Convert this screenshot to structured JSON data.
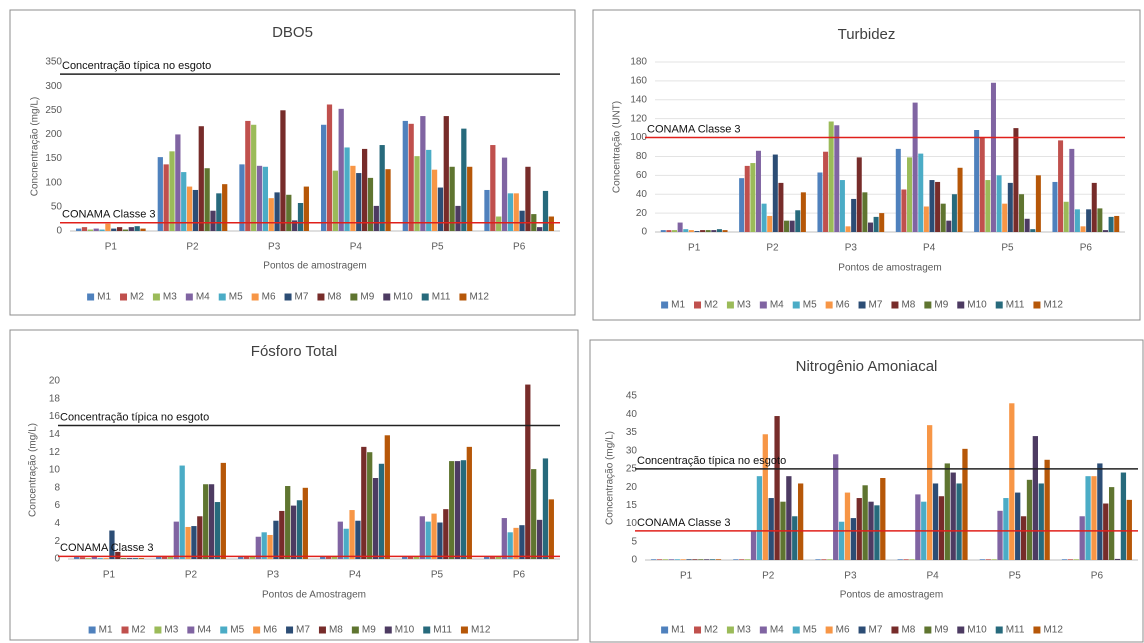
{
  "chart_data": [
    {
      "type": "bar",
      "title": "DBO5",
      "x_label": "Pontos de amostragem",
      "y_label": "Concnentração (mg/L)",
      "categories": [
        "P1",
        "P2",
        "P3",
        "P4",
        "P5",
        "P6"
      ],
      "ylim": [
        0,
        350
      ],
      "yticks": [
        0,
        50,
        100,
        150,
        200,
        250,
        300,
        350
      ],
      "grid": false,
      "reference_lines": [
        {
          "label": "Concentração típica no esgoto",
          "value": 325,
          "color": "#222222"
        },
        {
          "label": "CONAMA Classe 3",
          "value": 17,
          "color": "#e0201b"
        }
      ],
      "series": [
        {
          "name": "M1",
          "color": "#4f81bd",
          "values": [
            5,
            153,
            138,
            220,
            228,
            85
          ]
        },
        {
          "name": "M2",
          "color": "#c0504d",
          "values": [
            8,
            138,
            228,
            262,
            222,
            178
          ]
        },
        {
          "name": "M3",
          "color": "#9bbb59",
          "values": [
            3,
            165,
            220,
            125,
            155,
            30
          ]
        },
        {
          "name": "M4",
          "color": "#8064a2",
          "values": [
            5,
            200,
            135,
            253,
            238,
            152
          ]
        },
        {
          "name": "M5",
          "color": "#4bacc6",
          "values": [
            3,
            122,
            133,
            173,
            168,
            78
          ]
        },
        {
          "name": "M6",
          "color": "#f79646",
          "values": [
            15,
            92,
            68,
            135,
            127,
            78
          ]
        },
        {
          "name": "M7",
          "color": "#2c4d75",
          "values": [
            5,
            85,
            80,
            120,
            90,
            42
          ]
        },
        {
          "name": "M8",
          "color": "#772c2a",
          "values": [
            8,
            217,
            250,
            170,
            238,
            133
          ]
        },
        {
          "name": "M9",
          "color": "#5f7530",
          "values": [
            3,
            130,
            75,
            110,
            133,
            35
          ]
        },
        {
          "name": "M10",
          "color": "#4d3b62",
          "values": [
            8,
            42,
            22,
            52,
            52,
            8
          ]
        },
        {
          "name": "M11",
          "color": "#276a7c",
          "values": [
            10,
            78,
            58,
            178,
            212,
            83
          ]
        },
        {
          "name": "M12",
          "color": "#b65708",
          "values": [
            5,
            97,
            92,
            128,
            133,
            30
          ]
        }
      ]
    },
    {
      "type": "bar",
      "title": "Turbidez",
      "x_label": "Pontos de amostragem",
      "y_label": "Concentração (UNT)",
      "categories": [
        "P1",
        "P2",
        "P3",
        "P4",
        "P5",
        "P6"
      ],
      "ylim": [
        0,
        180
      ],
      "yticks": [
        0,
        20,
        40,
        60,
        80,
        100,
        120,
        140,
        160,
        180
      ],
      "grid": true,
      "reference_lines": [
        {
          "label": "CONAMA Classe 3",
          "value": 100,
          "color": "#e0201b"
        }
      ],
      "series": [
        {
          "name": "M1",
          "color": "#4f81bd",
          "values": [
            2,
            57,
            63,
            88,
            108,
            53
          ]
        },
        {
          "name": "M2",
          "color": "#c0504d",
          "values": [
            2,
            70,
            85,
            45,
            100,
            97
          ]
        },
        {
          "name": "M3",
          "color": "#9bbb59",
          "values": [
            2,
            73,
            117,
            79,
            55,
            32
          ]
        },
        {
          "name": "M4",
          "color": "#8064a2",
          "values": [
            10,
            86,
            113,
            137,
            158,
            88
          ]
        },
        {
          "name": "M5",
          "color": "#4bacc6",
          "values": [
            3,
            30,
            55,
            83,
            60,
            24
          ]
        },
        {
          "name": "M6",
          "color": "#f79646",
          "values": [
            2,
            17,
            6,
            27,
            30,
            6
          ]
        },
        {
          "name": "M7",
          "color": "#2c4d75",
          "values": [
            1,
            82,
            35,
            55,
            52,
            24
          ]
        },
        {
          "name": "M8",
          "color": "#772c2a",
          "values": [
            2,
            52,
            79,
            53,
            110,
            52
          ]
        },
        {
          "name": "M9",
          "color": "#5f7530",
          "values": [
            2,
            12,
            42,
            30,
            40,
            25
          ]
        },
        {
          "name": "M10",
          "color": "#4d3b62",
          "values": [
            2,
            12,
            10,
            12,
            14,
            2
          ]
        },
        {
          "name": "M11",
          "color": "#276a7c",
          "values": [
            3,
            23,
            16,
            40,
            3,
            16
          ]
        },
        {
          "name": "M12",
          "color": "#b65708",
          "values": [
            2,
            42,
            20,
            68,
            60,
            17
          ]
        }
      ]
    },
    {
      "type": "bar",
      "title": "Fósforo Total",
      "x_label": "Pontos de Amostragem",
      "y_label": "Concentração (mg/L)",
      "categories": [
        "P1",
        "P2",
        "P3",
        "P4",
        "P5",
        "P6"
      ],
      "ylim": [
        0,
        20
      ],
      "yticks": [
        0,
        2,
        4,
        6,
        8,
        10,
        12,
        14,
        16,
        18,
        20
      ],
      "grid": false,
      "reference_lines": [
        {
          "label": "Concentração típica no esgoto",
          "value": 15,
          "color": "#222222"
        },
        {
          "label": "CONAMA Classe 3",
          "value": 0.3,
          "color": "#e0201b"
        }
      ],
      "series": [
        {
          "name": "M1",
          "color": "#4f81bd",
          "values": [
            0.3,
            0.3,
            0.3,
            0.3,
            0.3,
            0.3
          ]
        },
        {
          "name": "M2",
          "color": "#c0504d",
          "values": [
            0.2,
            0.3,
            0.3,
            0.3,
            0.3,
            0.3
          ]
        },
        {
          "name": "M3",
          "color": "#9bbb59",
          "values": [
            0.1,
            0.3,
            0.3,
            0.3,
            0.3,
            0.3
          ]
        },
        {
          "name": "M4",
          "color": "#8064a2",
          "values": [
            0.3,
            4.2,
            2.5,
            4.2,
            4.8,
            4.6
          ]
        },
        {
          "name": "M5",
          "color": "#4bacc6",
          "values": [
            0.1,
            10.5,
            3.0,
            3.4,
            4.2,
            3.0
          ]
        },
        {
          "name": "M6",
          "color": "#f79646",
          "values": [
            0.1,
            3.6,
            2.7,
            5.5,
            5.1,
            3.5
          ]
        },
        {
          "name": "M7",
          "color": "#2c4d75",
          "values": [
            3.2,
            3.7,
            4.3,
            4.3,
            4.1,
            3.8
          ]
        },
        {
          "name": "M8",
          "color": "#772c2a",
          "values": [
            0.8,
            4.8,
            5.4,
            12.6,
            5.6,
            19.6
          ]
        },
        {
          "name": "M9",
          "color": "#5f7530",
          "values": [
            0.1,
            8.4,
            8.2,
            12.0,
            11.0,
            10.1
          ]
        },
        {
          "name": "M10",
          "color": "#4d3b62",
          "values": [
            0.1,
            8.4,
            6.0,
            9.1,
            11.0,
            4.4
          ]
        },
        {
          "name": "M11",
          "color": "#276a7c",
          "values": [
            0.1,
            6.4,
            6.6,
            10.7,
            11.1,
            11.3
          ]
        },
        {
          "name": "M12",
          "color": "#b65708",
          "values": [
            0.1,
            10.8,
            8.0,
            13.9,
            12.6,
            6.7
          ]
        }
      ]
    },
    {
      "type": "bar",
      "title": "Nitrogênio Amoniacal",
      "x_label": "Pontos de amostragem",
      "y_label": "Concentração (mg/L)",
      "categories": [
        "P1",
        "P2",
        "P3",
        "P4",
        "P5",
        "P6"
      ],
      "ylim": [
        0,
        45
      ],
      "yticks": [
        0,
        5,
        10,
        15,
        20,
        25,
        30,
        35,
        40,
        45
      ],
      "grid": false,
      "reference_lines": [
        {
          "label": "Concentração típica no esgoto",
          "value": 25,
          "color": "#222222"
        },
        {
          "label": "CONAMA Classe 3",
          "value": 8,
          "color": "#e0201b"
        }
      ],
      "series": [
        {
          "name": "M1",
          "color": "#4f81bd",
          "values": [
            0.2,
            0.2,
            0.2,
            0.2,
            0.2,
            0.2
          ]
        },
        {
          "name": "M2",
          "color": "#c0504d",
          "values": [
            0.2,
            0.2,
            0.2,
            0.2,
            0.2,
            0.2
          ]
        },
        {
          "name": "M3",
          "color": "#9bbb59",
          "values": [
            0.2,
            0.2,
            0.2,
            0.2,
            0.2,
            0.2
          ]
        },
        {
          "name": "M4",
          "color": "#8064a2",
          "values": [
            0.2,
            8,
            29,
            18,
            13.5,
            12
          ]
        },
        {
          "name": "M5",
          "color": "#4bacc6",
          "values": [
            0.2,
            23,
            10.5,
            16,
            17,
            23
          ]
        },
        {
          "name": "M6",
          "color": "#f79646",
          "values": [
            0.2,
            34.5,
            18.5,
            37,
            43,
            23
          ]
        },
        {
          "name": "M7",
          "color": "#2c4d75",
          "values": [
            0.2,
            17,
            11.5,
            21,
            18.5,
            26.5
          ]
        },
        {
          "name": "M8",
          "color": "#772c2a",
          "values": [
            0.2,
            39.5,
            17,
            17.5,
            12,
            15.5
          ]
        },
        {
          "name": "M9",
          "color": "#5f7530",
          "values": [
            0.2,
            16,
            20.5,
            26.5,
            22,
            20
          ]
        },
        {
          "name": "M10",
          "color": "#4d3b62",
          "values": [
            0.2,
            23,
            16,
            24,
            34,
            0.3
          ]
        },
        {
          "name": "M11",
          "color": "#276a7c",
          "values": [
            0.2,
            12,
            15,
            21,
            21,
            24
          ]
        },
        {
          "name": "M12",
          "color": "#b65708",
          "values": [
            0.2,
            21,
            22.5,
            30.5,
            27.5,
            16.5
          ]
        }
      ]
    }
  ]
}
